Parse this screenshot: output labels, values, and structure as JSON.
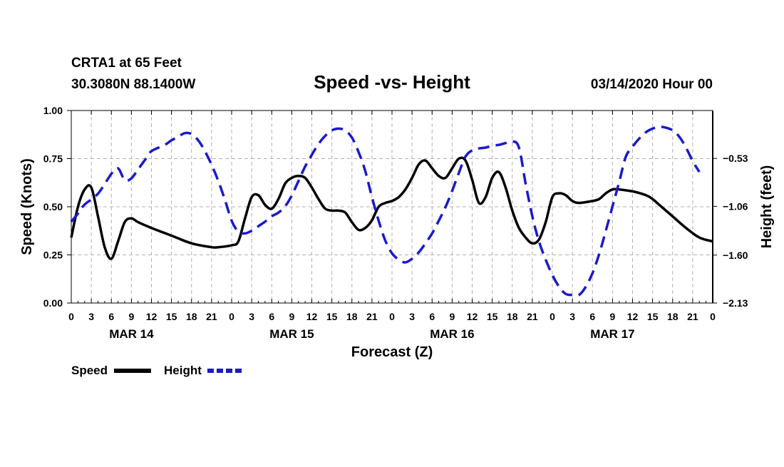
{
  "header": {
    "station_line": "CRTA1 at 65 Feet",
    "coords_line": "30.3080N 88.1400W",
    "title": "Speed -vs- Height",
    "run_line": "03/14/2020 Hour 00"
  },
  "legend": {
    "speed_label": "Speed",
    "height_label": "Height"
  },
  "colors": {
    "speed": "#000000",
    "height": "#1a1acd",
    "grid": "#b0b0b0"
  },
  "chart_data": {
    "type": "line",
    "title": "Speed -vs- Height",
    "xlabel": "Forecast (Z)",
    "ylabel": "Speed (Knots)",
    "y2label": "Height (feet)",
    "x_range_hours": [
      0,
      96
    ],
    "x_tick_hours": [
      0,
      3,
      6,
      9,
      12,
      15,
      18,
      21,
      24,
      27,
      30,
      33,
      36,
      39,
      42,
      45,
      48,
      51,
      54,
      57,
      60,
      63,
      66,
      69,
      72,
      75,
      78,
      81,
      84,
      87,
      90,
      93,
      96
    ],
    "x_tick_labels": [
      "0",
      "3",
      "6",
      "9",
      "12",
      "15",
      "18",
      "21",
      "0",
      "3",
      "6",
      "9",
      "12",
      "15",
      "18",
      "21",
      "0",
      "3",
      "6",
      "9",
      "12",
      "15",
      "18",
      "21",
      "0",
      "3",
      "6",
      "9",
      "12",
      "15",
      "18",
      "21",
      "0"
    ],
    "day_labels": [
      {
        "label": "MAR 14",
        "hour": 9
      },
      {
        "label": "MAR 15",
        "hour": 33
      },
      {
        "label": "MAR 16",
        "hour": 57
      },
      {
        "label": "MAR 17",
        "hour": 81
      }
    ],
    "y_left": {
      "range": [
        0,
        1
      ],
      "ticks": [
        0,
        0.25,
        0.5,
        0.75,
        1.0
      ],
      "tick_labels": [
        "0.00",
        "0.25",
        "0.50",
        "0.75",
        "1.00"
      ]
    },
    "y_right": {
      "range": [
        -2.13,
        -0.0
      ],
      "ticks": [
        -2.13,
        -1.6,
        -1.06,
        -0.53
      ],
      "tick_labels": [
        "−2.13",
        "−1.60",
        "−1.06",
        "−0.53"
      ]
    },
    "grid": true,
    "series": [
      {
        "name": "Speed",
        "axis": "left",
        "style": "solid",
        "points": [
          [
            0,
            0.34
          ],
          [
            1,
            0.5
          ],
          [
            2,
            0.59
          ],
          [
            3,
            0.6
          ],
          [
            4,
            0.45
          ],
          [
            5,
            0.29
          ],
          [
            6,
            0.23
          ],
          [
            7,
            0.32
          ],
          [
            8,
            0.42
          ],
          [
            9,
            0.44
          ],
          [
            10,
            0.42
          ],
          [
            12,
            0.39
          ],
          [
            15,
            0.35
          ],
          [
            18,
            0.31
          ],
          [
            21,
            0.29
          ],
          [
            22,
            0.29
          ],
          [
            24,
            0.3
          ],
          [
            25,
            0.32
          ],
          [
            26,
            0.44
          ],
          [
            27,
            0.55
          ],
          [
            28,
            0.56
          ],
          [
            29,
            0.51
          ],
          [
            30,
            0.49
          ],
          [
            31,
            0.54
          ],
          [
            32,
            0.62
          ],
          [
            33,
            0.65
          ],
          [
            34,
            0.66
          ],
          [
            35,
            0.65
          ],
          [
            36,
            0.6
          ],
          [
            37,
            0.54
          ],
          [
            38,
            0.49
          ],
          [
            39,
            0.48
          ],
          [
            40,
            0.48
          ],
          [
            41,
            0.47
          ],
          [
            42,
            0.42
          ],
          [
            43,
            0.38
          ],
          [
            44,
            0.39
          ],
          [
            45,
            0.43
          ],
          [
            46,
            0.5
          ],
          [
            47,
            0.52
          ],
          [
            48,
            0.53
          ],
          [
            49,
            0.55
          ],
          [
            50,
            0.59
          ],
          [
            51,
            0.65
          ],
          [
            52,
            0.72
          ],
          [
            53,
            0.74
          ],
          [
            54,
            0.7
          ],
          [
            55,
            0.66
          ],
          [
            56,
            0.65
          ],
          [
            57,
            0.7
          ],
          [
            58,
            0.75
          ],
          [
            59,
            0.74
          ],
          [
            60,
            0.64
          ],
          [
            61,
            0.52
          ],
          [
            62,
            0.55
          ],
          [
            63,
            0.65
          ],
          [
            64,
            0.68
          ],
          [
            65,
            0.6
          ],
          [
            66,
            0.48
          ],
          [
            67,
            0.39
          ],
          [
            68,
            0.34
          ],
          [
            69,
            0.31
          ],
          [
            70,
            0.33
          ],
          [
            71,
            0.42
          ],
          [
            72,
            0.55
          ],
          [
            73,
            0.57
          ],
          [
            74,
            0.56
          ],
          [
            75,
            0.53
          ],
          [
            76,
            0.52
          ],
          [
            78,
            0.53
          ],
          [
            79,
            0.54
          ],
          [
            80,
            0.57
          ],
          [
            81,
            0.59
          ],
          [
            82,
            0.59
          ],
          [
            84,
            0.58
          ],
          [
            86,
            0.56
          ],
          [
            87,
            0.54
          ],
          [
            88,
            0.51
          ],
          [
            90,
            0.45
          ],
          [
            92,
            0.39
          ],
          [
            94,
            0.34
          ],
          [
            96,
            0.32
          ]
        ]
      },
      {
        "name": "Height",
        "axis": "right",
        "style": "dashed",
        "points": [
          [
            0,
            -1.23
          ],
          [
            1,
            -1.14
          ],
          [
            2,
            -1.04
          ],
          [
            4,
            -0.92
          ],
          [
            6,
            -0.7
          ],
          [
            7,
            -0.64
          ],
          [
            8,
            -0.77
          ],
          [
            9,
            -0.75
          ],
          [
            10,
            -0.65
          ],
          [
            11,
            -0.55
          ],
          [
            12,
            -0.45
          ],
          [
            14,
            -0.38
          ],
          [
            15,
            -0.33
          ],
          [
            16,
            -0.29
          ],
          [
            17,
            -0.25
          ],
          [
            18,
            -0.26
          ],
          [
            19,
            -0.33
          ],
          [
            20,
            -0.45
          ],
          [
            21,
            -0.6
          ],
          [
            22,
            -0.78
          ],
          [
            23,
            -0.99
          ],
          [
            24,
            -1.22
          ],
          [
            25,
            -1.34
          ],
          [
            26,
            -1.36
          ],
          [
            27,
            -1.33
          ],
          [
            28,
            -1.28
          ],
          [
            29,
            -1.23
          ],
          [
            30,
            -1.17
          ],
          [
            31,
            -1.13
          ],
          [
            32,
            -1.06
          ],
          [
            33,
            -0.94
          ],
          [
            34,
            -0.78
          ],
          [
            35,
            -0.62
          ],
          [
            36,
            -0.49
          ],
          [
            37,
            -0.37
          ],
          [
            38,
            -0.28
          ],
          [
            39,
            -0.22
          ],
          [
            40,
            -0.2
          ],
          [
            41,
            -0.22
          ],
          [
            42,
            -0.3
          ],
          [
            43,
            -0.46
          ],
          [
            44,
            -0.67
          ],
          [
            45,
            -0.96
          ],
          [
            46,
            -1.22
          ],
          [
            47,
            -1.44
          ],
          [
            48,
            -1.58
          ],
          [
            49,
            -1.65
          ],
          [
            50,
            -1.68
          ],
          [
            51,
            -1.64
          ],
          [
            52,
            -1.57
          ],
          [
            53,
            -1.47
          ],
          [
            54,
            -1.36
          ],
          [
            55,
            -1.22
          ],
          [
            56,
            -1.07
          ],
          [
            57,
            -0.89
          ],
          [
            58,
            -0.69
          ],
          [
            59,
            -0.51
          ],
          [
            60,
            -0.44
          ],
          [
            61,
            -0.42
          ],
          [
            62,
            -0.41
          ],
          [
            63,
            -0.39
          ],
          [
            64,
            -0.38
          ],
          [
            65,
            -0.36
          ],
          [
            66,
            -0.34
          ],
          [
            67,
            -0.41
          ],
          [
            68,
            -0.81
          ],
          [
            69,
            -1.17
          ],
          [
            70,
            -1.45
          ],
          [
            71,
            -1.65
          ],
          [
            72,
            -1.82
          ],
          [
            73,
            -1.95
          ],
          [
            74,
            -2.03
          ],
          [
            75,
            -2.04
          ],
          [
            76,
            -2.04
          ],
          [
            77,
            -1.95
          ],
          [
            78,
            -1.8
          ],
          [
            79,
            -1.59
          ],
          [
            80,
            -1.33
          ],
          [
            81,
            -1.06
          ],
          [
            82,
            -0.79
          ],
          [
            83,
            -0.51
          ],
          [
            84,
            -0.4
          ],
          [
            85,
            -0.31
          ],
          [
            86,
            -0.24
          ],
          [
            87,
            -0.2
          ],
          [
            88,
            -0.18
          ],
          [
            89,
            -0.19
          ],
          [
            90,
            -0.22
          ],
          [
            91,
            -0.29
          ],
          [
            92,
            -0.41
          ],
          [
            93,
            -0.56
          ],
          [
            94,
            -0.68
          ]
        ]
      }
    ]
  }
}
